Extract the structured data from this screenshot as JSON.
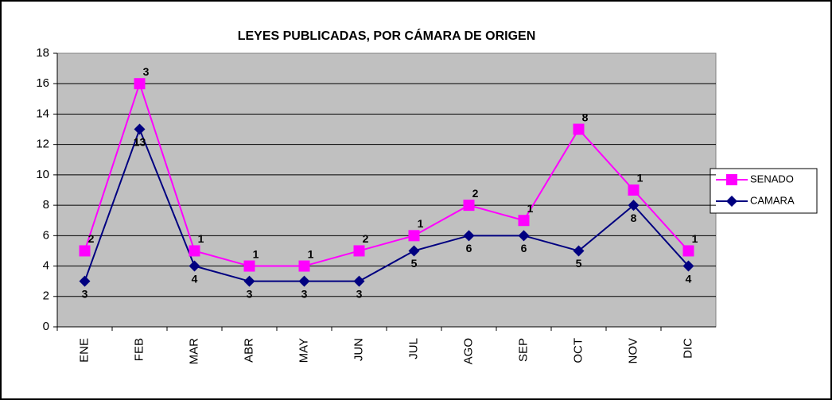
{
  "chart_data": {
    "type": "line",
    "stacked": true,
    "title": "LEYES PUBLICADAS, POR CÁMARA DE ORIGEN",
    "categories": [
      "ENE",
      "FEB",
      "MAR",
      "ABR",
      "MAY",
      "JUN",
      "JUL",
      "AGO",
      "SEP",
      "OCT",
      "NOV",
      "DIC"
    ],
    "series": [
      {
        "name": "CAMARA",
        "color": "#000080",
        "marker": "diamond",
        "values": [
          3,
          13,
          4,
          3,
          3,
          3,
          5,
          6,
          6,
          5,
          8,
          4
        ]
      },
      {
        "name": "SENADO",
        "color": "#ff00ff",
        "marker": "square",
        "values": [
          2,
          3,
          1,
          1,
          1,
          2,
          1,
          2,
          1,
          8,
          1,
          1
        ]
      }
    ],
    "ylim": [
      0,
      18
    ],
    "yticks": [
      0,
      2,
      4,
      6,
      8,
      10,
      12,
      14,
      16,
      18
    ],
    "grid": true,
    "legend": "right",
    "data_labels": true
  }
}
